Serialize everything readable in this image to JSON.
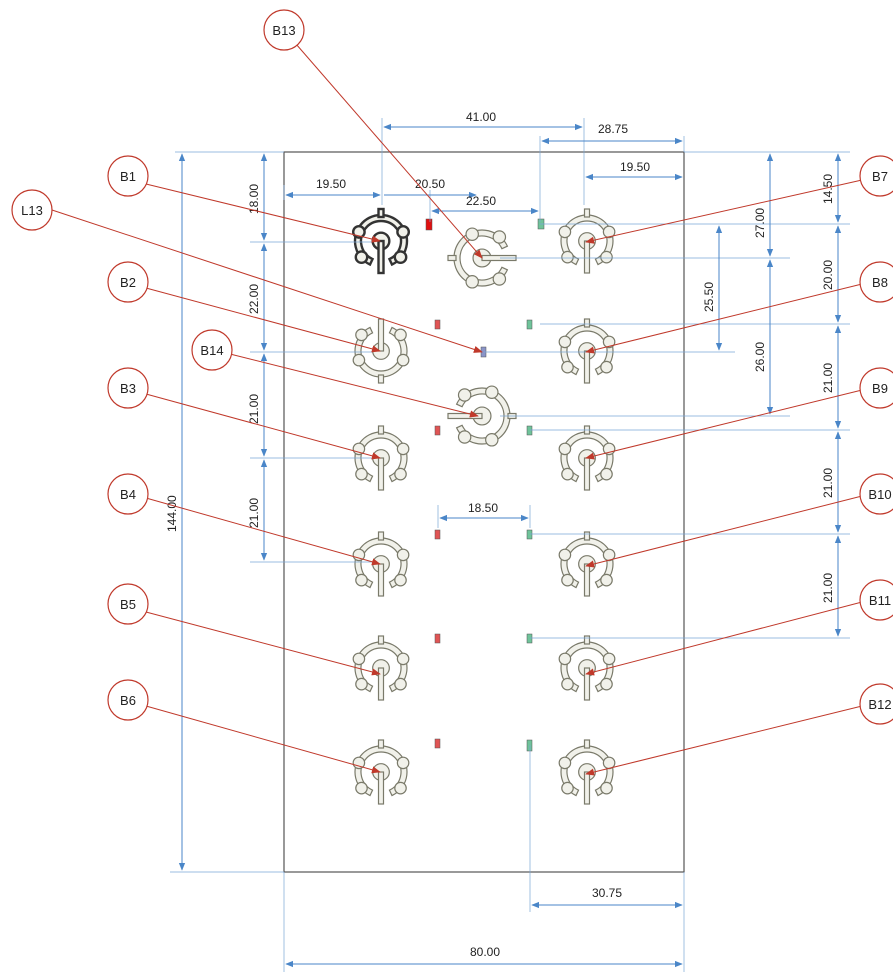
{
  "colors": {
    "dimension": "#4a86c8",
    "leader": "#c0392b",
    "pad_red": "#e05454",
    "pad_red_bright": "#e01010",
    "pad_green": "#6fc39a",
    "pad_blue": "#8a94c8",
    "part_fill": "#f1f1ea"
  },
  "callouts": [
    {
      "id": "B1",
      "label": "B1"
    },
    {
      "id": "B2",
      "label": "B2"
    },
    {
      "id": "B3",
      "label": "B3"
    },
    {
      "id": "B4",
      "label": "B4"
    },
    {
      "id": "B5",
      "label": "B5"
    },
    {
      "id": "B6",
      "label": "B6"
    },
    {
      "id": "B7",
      "label": "B7"
    },
    {
      "id": "B8",
      "label": "B8"
    },
    {
      "id": "B9",
      "label": "B9"
    },
    {
      "id": "B10",
      "label": "B10"
    },
    {
      "id": "B11",
      "label": "B11"
    },
    {
      "id": "B12",
      "label": "B12"
    },
    {
      "id": "B13",
      "label": "B13"
    },
    {
      "id": "B14",
      "label": "B14"
    },
    {
      "id": "L13",
      "label": "L13"
    }
  ],
  "dimensions": {
    "top_41": "41.00",
    "top_28_75": "28.75",
    "top_19_50_right": "19.50",
    "top_19_50_left": "19.50",
    "top_20_50": "20.50",
    "top_22_50": "22.50",
    "left_18": "18.00",
    "left_22": "22.00",
    "left_21_a": "21.00",
    "left_21_b": "21.00",
    "overall_144": "144.00",
    "right_14_50": "14.50",
    "right_20": "20.00",
    "right_21_a": "21.00",
    "right_21_b": "21.00",
    "right_21_c": "21.00",
    "inner_27": "27.00",
    "inner_25_50": "25.50",
    "inner_26": "26.00",
    "middle_18_50": "18.50",
    "bottom_30_75": "30.75",
    "bottom_80": "80.00"
  }
}
